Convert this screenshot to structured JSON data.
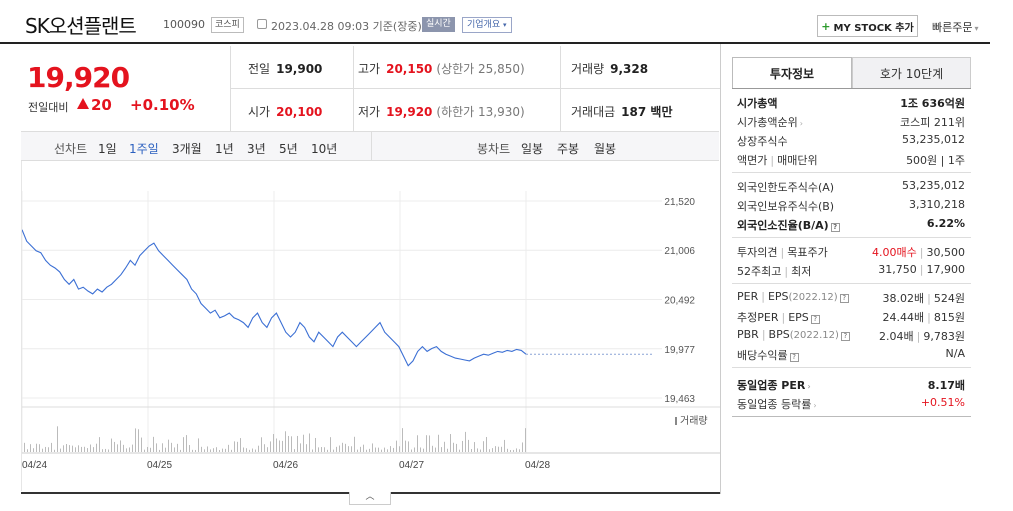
{
  "header": {
    "name": "SK오션플랜트",
    "code": "100090",
    "market": "코스피",
    "timestamp": "2023.04.28 09:03 기준(장중)",
    "realtime": "실시간",
    "company_overview": "기업개요",
    "mystock": "MY STOCK 추가",
    "quick_order": "빠른주문"
  },
  "price": {
    "current": "19,920",
    "prev_label": "전일대비",
    "change": "20",
    "change_pct": "+0.10%"
  },
  "quote": {
    "prev_label": "전일",
    "prev": "19,900",
    "high_label": "고가",
    "high": "20,150",
    "upper_limit": "(상한가 25,850)",
    "volume_label": "거래량",
    "volume": "9,328",
    "open_label": "시가",
    "open": "20,100",
    "low_label": "저가",
    "low": "19,920",
    "lower_limit": "(하한가 13,930)",
    "amount_label": "거래대금",
    "amount": "187 백만"
  },
  "period_bar": {
    "line_label": "선차트",
    "periods": [
      "1일",
      "1주일",
      "3개월",
      "1년",
      "3년",
      "5년",
      "10년"
    ],
    "active": "1주일",
    "candle_label": "봉차트",
    "candles": [
      "일봉",
      "주봉",
      "월봉"
    ]
  },
  "chart_data": {
    "type": "line",
    "x_labels": [
      "04/24",
      "04/25",
      "04/26",
      "04/27",
      "04/28"
    ],
    "y_ticks": [
      "21,520",
      "21,006",
      "20,492",
      "19,977",
      "19,463"
    ],
    "ylim": [
      19463,
      21520
    ],
    "volume_label": "거래량",
    "series": [
      {
        "values": [
          21220,
          21100,
          21050,
          21000,
          20980,
          20900,
          20850,
          20820,
          20780,
          20700,
          20650,
          20700,
          20600,
          20620,
          20580,
          20550,
          20600,
          20570,
          20620,
          20650,
          20700,
          20750,
          20820,
          20900,
          20850,
          20950,
          21000,
          21050,
          21080,
          21000,
          20950,
          20900,
          20850,
          20800,
          20750,
          20700,
          20600,
          20550,
          20450,
          20400,
          20350,
          20380,
          20300,
          20320,
          20350,
          20300,
          20280,
          20250,
          20200,
          20300,
          20350,
          20250,
          20200,
          20300,
          20350,
          20250,
          20150,
          20100,
          20150,
          20250,
          20200,
          20100,
          20050,
          20150,
          20100,
          20050,
          20000,
          20100,
          20150,
          20100,
          20050,
          20000,
          20050,
          20100,
          20150,
          20200,
          20250,
          20150,
          20100,
          20050,
          20000,
          19900,
          19800,
          19850,
          19950,
          20000,
          19950,
          19980,
          20000,
          19950,
          19920,
          19900,
          19880,
          19870,
          19860,
          19850,
          19880,
          19900,
          19920,
          19910,
          19930,
          19950,
          19940,
          19960,
          19950,
          19970,
          19960,
          19920
        ]
      }
    ]
  },
  "investment": {
    "tab_active": "투자정보",
    "tab_other": "호가 10단계",
    "market_cap_label": "시가총액",
    "market_cap": "1조 636억원",
    "rank_label": "시가총액순위",
    "rank": "코스피 211위",
    "shares_label": "상장주식수",
    "shares": "53,235,012",
    "par_label": "액면가",
    "unit_label": "매매단위",
    "par_unit": "500원 | 1주",
    "foreign_limit_label": "외국인한도주식수(A)",
    "foreign_limit": "53,235,012",
    "foreign_hold_label": "외국인보유주식수(B)",
    "foreign_hold": "3,310,218",
    "foreign_rate_label": "외국인소진율(B/A)",
    "foreign_rate": "6.22%",
    "opinion_label": "투자의견",
    "target_label": "목표주가",
    "opinion": "4.00매수",
    "target": "30,500",
    "w52_high_label": "52주최고",
    "w52_low_label": "최저",
    "w52_high": "31,750",
    "w52_low": "17,900",
    "per_label": "PER",
    "eps_label": "EPS",
    "eps_year": "(2022.12)",
    "per": "38.02배",
    "eps": "524원",
    "est_per_label": "추정PER",
    "est_eps_label": "EPS",
    "est_per": "24.44배",
    "est_eps": "815원",
    "pbr_label": "PBR",
    "bps_label": "BPS",
    "bps_year": "(2022.12)",
    "pbr": "2.04배",
    "bps": "9,783원",
    "div_label": "배당수익률",
    "div": "N/A",
    "ind_per_label": "동일업종 PER",
    "ind_per": "8.17배",
    "ind_chg_label": "동일업종 등락률",
    "ind_chg": "+0.51%"
  },
  "colors": {
    "up": "#e4131e",
    "line": "#3b6fd4",
    "active": "#2a5fbf"
  }
}
